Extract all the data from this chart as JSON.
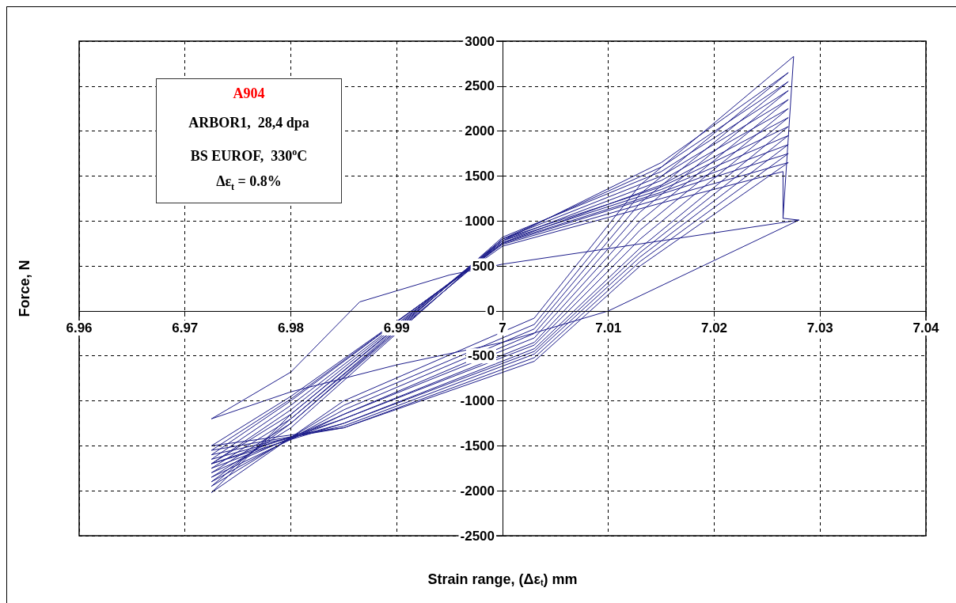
{
  "chart_data": {
    "type": "line",
    "xlabel": "Strain range, (Δε$_{t}$) mm",
    "ylabel": "Force, N",
    "annotations": [
      "A904",
      "ARBOR1,  28,4 dpa",
      "BS EUROF,  330$^{o}$C",
      "Δε$_{t}$ = 0.8%"
    ],
    "xlim": [
      6.96,
      7.04
    ],
    "xticks": [
      6.96,
      6.97,
      6.98,
      6.99,
      7,
      7.01,
      7.02,
      7.03,
      7.04
    ],
    "ylim": [
      -2500,
      3000
    ],
    "yticks": [
      -2500,
      -2000,
      -1500,
      -1000,
      -500,
      0,
      500,
      1000,
      1500,
      2000,
      2500,
      3000
    ],
    "grid": true,
    "marker": "none",
    "line_style": "solid",
    "series": [
      {
        "color": "#1c1c8a",
        "x": [
          7.028,
          7.01,
          7.0,
          6.99,
          6.98,
          6.9725,
          6.98,
          6.9865,
          6.995,
          7.0,
          7.015,
          7.028,
          7.0265,
          7.0275,
          7.013,
          7.003,
          6.985,
          6.9725,
          6.98,
          7.0,
          7.015,
          7.027,
          7.013,
          7.003,
          6.985,
          6.9725,
          6.98,
          7.0,
          7.015,
          7.027,
          7.013,
          7.003,
          6.985,
          6.9725,
          6.98,
          7.0,
          7.015,
          7.027,
          7.013,
          7.003,
          6.985,
          6.9725,
          6.98,
          7.0,
          7.015,
          7.027,
          7.013,
          7.003,
          6.985,
          6.9725,
          6.98,
          7.0,
          7.015,
          7.027,
          7.013,
          7.003,
          6.985,
          6.9725,
          6.98,
          7.0,
          7.015,
          7.027,
          7.013,
          7.003,
          6.985,
          6.9725,
          6.98,
          7.0,
          7.015,
          7.027,
          7.013,
          7.003,
          6.985,
          6.9725,
          6.98,
          7.0,
          7.015,
          7.027,
          7.013,
          7.003,
          6.985,
          6.9725,
          6.98,
          7.0,
          7.015,
          7.027,
          7.013,
          7.003,
          6.985,
          6.9725,
          6.98,
          7.0,
          7.015,
          7.027,
          7.013,
          7.003,
          6.985,
          6.9725,
          6.98,
          7.0,
          7.015,
          7.027,
          7.013,
          7.003,
          6.985,
          6.9725,
          6.98,
          7.0,
          7.015,
          7.0265,
          7.0265
        ],
        "values": [
          1010,
          0,
          -350,
          -600,
          -900,
          -1200,
          -680,
          100,
          400,
          520,
          780,
          1010,
          1030,
          2830,
          1400,
          -80,
          -1000,
          -2020,
          -1150,
          780,
          1650,
          2650,
          1300,
          -150,
          -1050,
          -1950,
          -1200,
          800,
          1600,
          2550,
          1200,
          -200,
          -1100,
          -1900,
          -1250,
          820,
          1550,
          2450,
          1100,
          -250,
          -1150,
          -1850,
          -1300,
          800,
          1500,
          2350,
          1000,
          -300,
          -1150,
          -1800,
          -1250,
          780,
          1450,
          2250,
          900,
          -350,
          -1200,
          -1750,
          -1200,
          760,
          1400,
          2150,
          800,
          -380,
          -1200,
          -1700,
          -1150,
          800,
          1380,
          2050,
          700,
          -420,
          -1250,
          -1700,
          -1100,
          780,
          1350,
          1950,
          650,
          -450,
          -1250,
          -1650,
          -1050,
          760,
          1320,
          1850,
          600,
          -480,
          -1280,
          -1600,
          -1000,
          750,
          1300,
          1750,
          550,
          -520,
          -1300,
          -1550,
          -980,
          740,
          1250,
          1650,
          500,
          -560,
          -1300,
          -1500,
          -950,
          720,
          1200,
          1550,
          1030
        ]
      }
    ]
  }
}
